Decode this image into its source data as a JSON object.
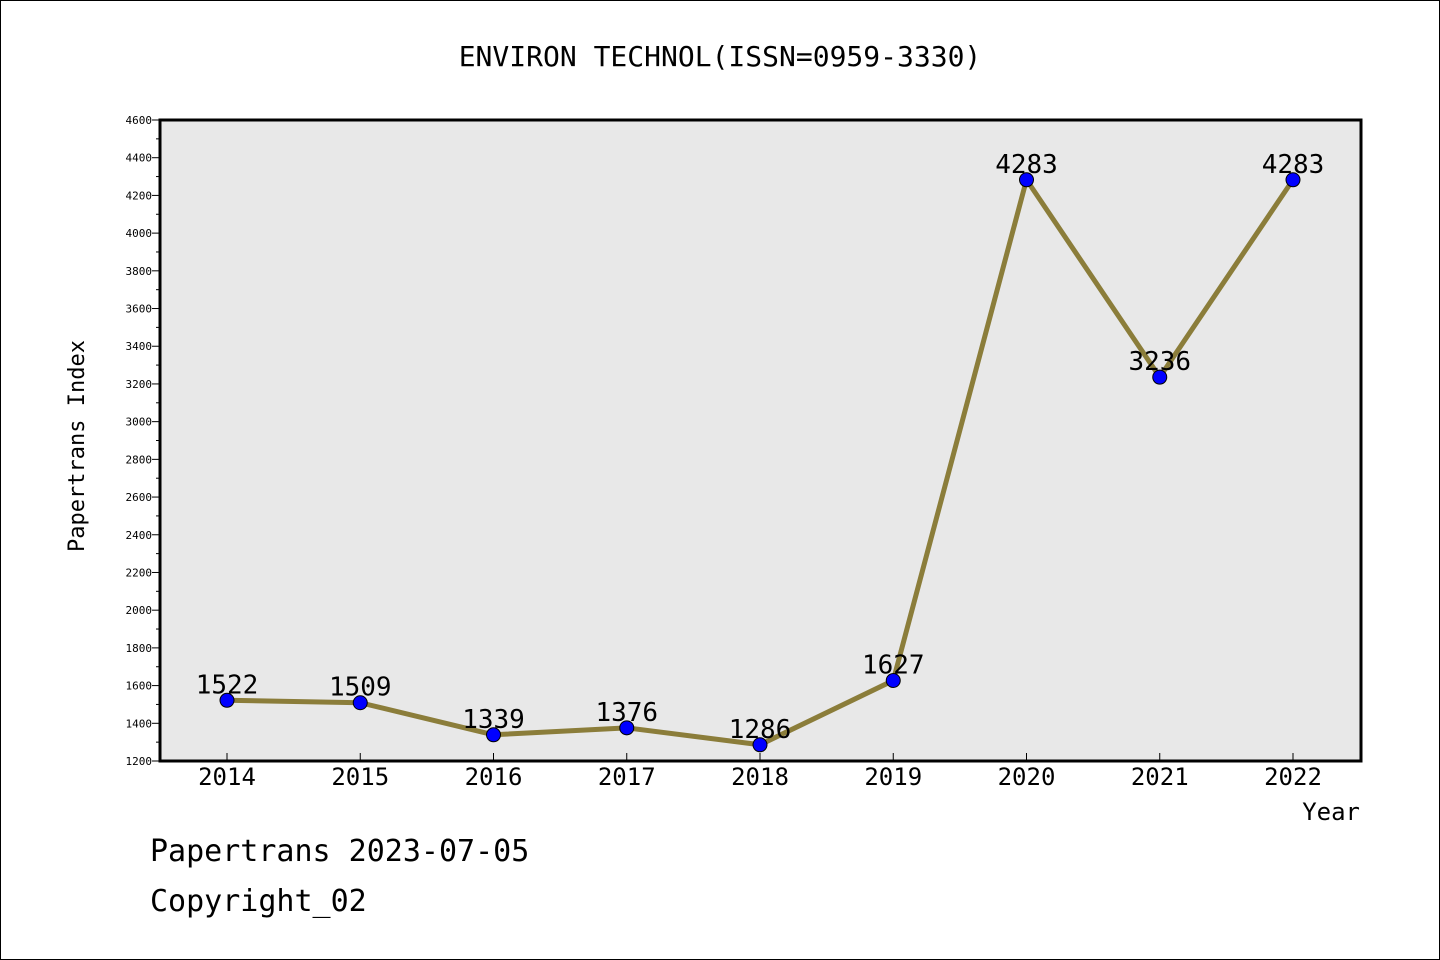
{
  "footer": {
    "line1": "Papertrans 2023-07-05",
    "line2": "Copyright_02"
  },
  "colors": {
    "plot_background": "#e8e8e8",
    "line": "#8b7d3a",
    "marker": "#0000ff"
  },
  "chart_data": {
    "type": "line",
    "title": "ENVIRON TECHNOL(ISSN=0959-3330)",
    "xlabel": "Year",
    "ylabel": "Papertrans Index",
    "x": [
      "2014",
      "2015",
      "2016",
      "2017",
      "2018",
      "2019",
      "2020",
      "2021",
      "2022"
    ],
    "series": [
      {
        "values": [
          1522,
          1509,
          1339,
          1376,
          1286,
          1627,
          4283,
          3236,
          4283
        ]
      }
    ],
    "data_labels": [
      "1522",
      "1509",
      "1339",
      "1376",
      "1286",
      "1627",
      "4283",
      "3236",
      "4283"
    ],
    "ylim": [
      1200,
      4600
    ],
    "yticks": [
      "1200",
      "1400",
      "1600",
      "1800",
      "2000",
      "2200",
      "2400",
      "2600",
      "2800",
      "3000",
      "3200",
      "3400",
      "3600",
      "3800",
      "4000",
      "4200",
      "4400",
      "4600"
    ],
    "grid": false,
    "legend": "none"
  }
}
